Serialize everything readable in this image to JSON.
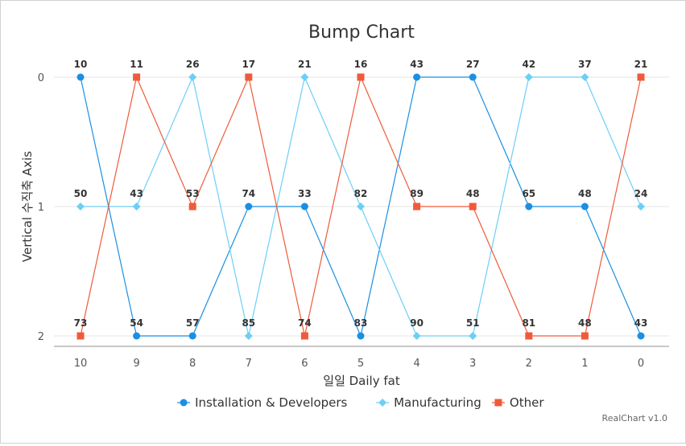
{
  "chart_data": {
    "type": "line",
    "title": "Bump Chart",
    "xlabel": "일일 Daily fat",
    "ylabel": "Vertical 수직축 Axis",
    "categories": [
      "10",
      "9",
      "8",
      "7",
      "6",
      "5",
      "4",
      "3",
      "2",
      "1",
      "0"
    ],
    "y_ticks": [
      "0",
      "1",
      "2"
    ],
    "ylim": [
      0,
      2
    ],
    "y_reversed": true,
    "grid": true,
    "legend_position": "bottom",
    "series": [
      {
        "name": "Installation & Developers",
        "color": "#1a8fe3",
        "marker": "circle",
        "ranks": [
          0,
          2,
          2,
          1,
          1,
          2,
          0,
          0,
          1,
          1,
          2
        ],
        "values": [
          10,
          54,
          57,
          74,
          33,
          83,
          43,
          27,
          65,
          48,
          43
        ]
      },
      {
        "name": "Manufacturing",
        "color": "#6ccff6",
        "marker": "diamond",
        "ranks": [
          1,
          1,
          0,
          2,
          0,
          1,
          2,
          2,
          0,
          0,
          1
        ],
        "values": [
          50,
          43,
          26,
          85,
          21,
          82,
          90,
          51,
          42,
          37,
          24
        ]
      },
      {
        "name": "Other",
        "color": "#f05a3a",
        "marker": "square",
        "ranks": [
          2,
          0,
          1,
          0,
          2,
          0,
          1,
          1,
          2,
          2,
          0
        ],
        "values": [
          73,
          11,
          53,
          17,
          74,
          16,
          89,
          48,
          81,
          48,
          21
        ]
      }
    ]
  },
  "credit": "RealChart v1.0"
}
